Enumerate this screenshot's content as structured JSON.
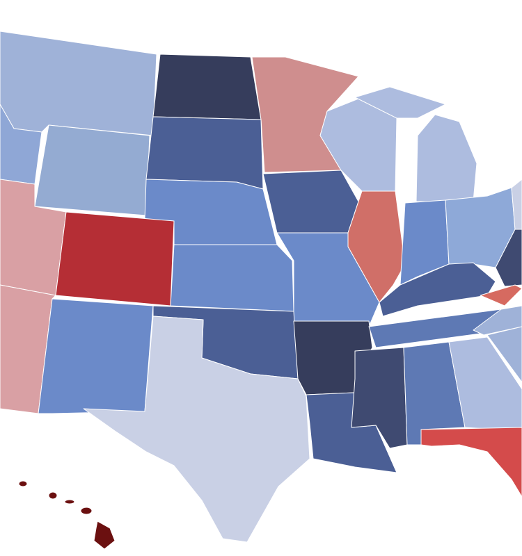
{
  "map": {
    "fills": [
      "#9fb2d8",
      "#8fa7d6",
      "#363d5c",
      "#cf8e8e",
      "#94abd2",
      "#4b5f95",
      "#6b8ac9",
      "#adbcdf",
      "#d06f68",
      "#8ea9d8",
      "#d9a0a4",
      "#b52e35",
      "#c9d0e5",
      "#3f4a71",
      "#5e79b4",
      "#d66a60",
      "#d44b4b",
      "#6b1010"
    ]
  }
}
